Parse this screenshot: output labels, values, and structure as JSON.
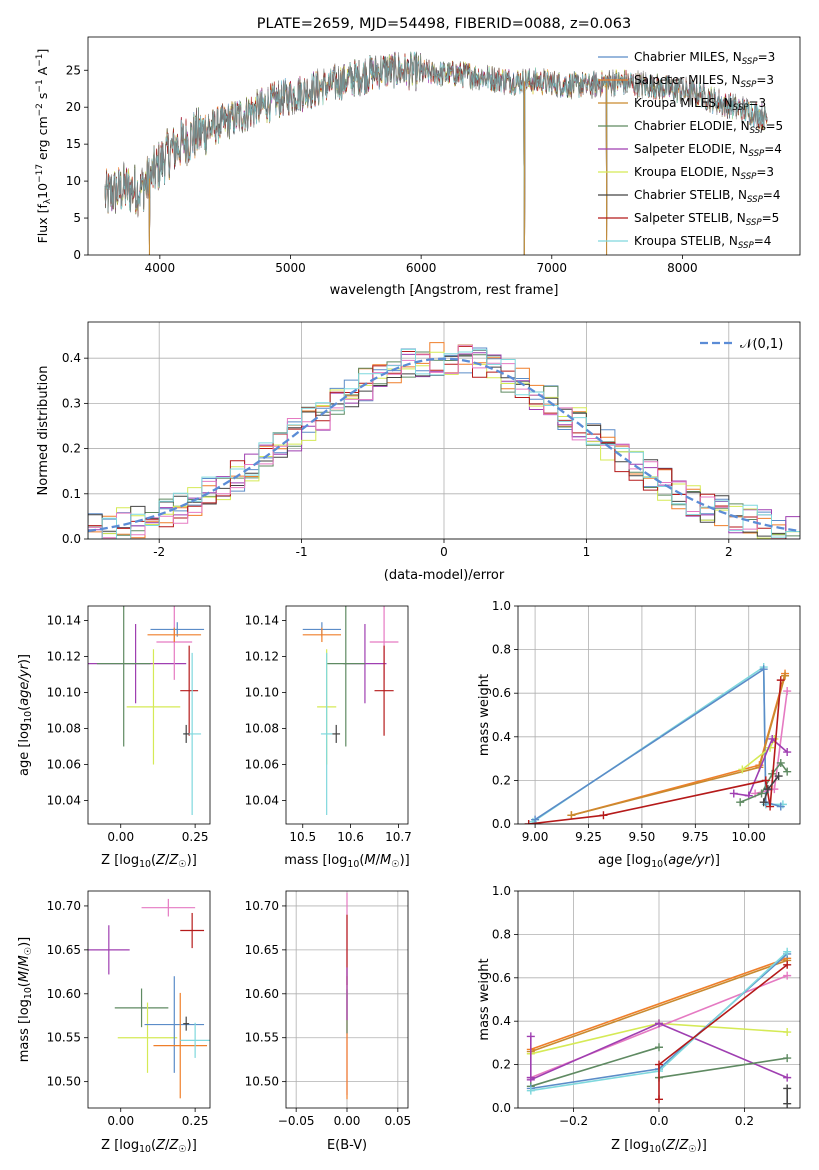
{
  "chart_data": [
    {
      "id": "spectrum",
      "type": "line",
      "title": "PLATE=2659, MJD=54498, FIBERID=0088, z=0.063",
      "xlabel": "wavelength [Angstrom, rest frame]",
      "ylabel": "Flux [f_λ 10^-17 erg cm^-2 s^-1 A^-1]",
      "xlim": [
        3450,
        8900
      ],
      "ylim": [
        0,
        29.5
      ],
      "xticks": [
        4000,
        5000,
        6000,
        7000,
        8000
      ],
      "yticks": [
        0,
        5,
        10,
        15,
        20,
        25
      ],
      "grid": false,
      "legend_position": "upper-right",
      "continuum": {
        "x": [
          3580,
          3650,
          3750,
          3850,
          3950,
          4050,
          4150,
          4300,
          4500,
          4700,
          4900,
          5100,
          5300,
          5500,
          5700,
          5900,
          6100,
          6300,
          6500,
          6700,
          6900,
          7100,
          7300,
          7500,
          7700,
          7900,
          8100,
          8300,
          8500,
          8650
        ],
        "y": [
          8.0,
          8.5,
          9.0,
          8.8,
          11.0,
          13.5,
          15.0,
          16.5,
          18.0,
          19.5,
          21.0,
          22.0,
          23.0,
          24.0,
          25.0,
          25.0,
          24.5,
          24.5,
          24.0,
          23.5,
          23.5,
          23.0,
          23.0,
          23.5,
          23.0,
          22.5,
          22.0,
          20.5,
          19.5,
          18.5
        ]
      },
      "dips": [
        {
          "x": 3920,
          "y": 0
        },
        {
          "x": 6790,
          "y": 0
        },
        {
          "x": 7420,
          "y": 0
        }
      ],
      "series": [
        {
          "name": "Chabrier MILES, N_SSP=3",
          "color": "#5b8cc8"
        },
        {
          "name": "Salpeter MILES, N_SSP=3",
          "color": "#ef7f2a"
        },
        {
          "name": "Kroupa MILES, N_SSP=3",
          "color": "#c98a2f"
        },
        {
          "name": "Chabrier ELODIE, N_SSP=5",
          "color": "#5f8a62"
        },
        {
          "name": "Salpeter ELODIE, N_SSP=4",
          "color": "#9f3fb1"
        },
        {
          "name": "Kroupa ELODIE, N_SSP=3",
          "color": "#d5ea56"
        },
        {
          "name": "Chabrier STELIB, N_SSP=4",
          "color": "#444444"
        },
        {
          "name": "Salpeter STELIB, N_SSP=5",
          "color": "#b51a1a"
        },
        {
          "name": "Kroupa STELIB, N_SSP=4",
          "color": "#7fd8dd"
        }
      ]
    },
    {
      "id": "residuals",
      "type": "step",
      "xlabel": "(data-model)/error",
      "ylabel": "Normed distribution",
      "xlim": [
        -2.5,
        2.5
      ],
      "ylim": [
        0,
        0.48
      ],
      "xticks": [
        -2,
        -1,
        0,
        1,
        2
      ],
      "yticks": [
        0.0,
        0.1,
        0.2,
        0.3,
        0.4
      ],
      "grid": true,
      "legend": "𝒩(0,1)",
      "legend_position": "upper-right",
      "reference_curve": "normal(0,1)",
      "bin_width": 0.1,
      "series_colors": [
        "#5b8cc8",
        "#ef7f2a",
        "#5f8a62",
        "#9f3fb1",
        "#d5ea56",
        "#444444",
        "#b51a1a",
        "#e57ac2",
        "#7fd8dd"
      ]
    },
    {
      "id": "age-vs-z",
      "type": "errorbar",
      "xlabel": "Z [log10(Z/Z☉)]",
      "ylabel": "age  [log10(age/yr)]",
      "xlim": [
        -0.11,
        0.3
      ],
      "ylim": [
        10.027,
        10.148
      ],
      "xticks": [
        0.0,
        0.25
      ],
      "xticklabels": [
        "0.00",
        "0.25"
      ],
      "yticks": [
        10.04,
        10.06,
        10.08,
        10.1,
        10.12,
        10.14
      ],
      "grid": false,
      "points": [
        {
          "x": 0.05,
          "y": 10.116,
          "xerr": 0.17,
          "yerr": 0.022,
          "color": "#9f3fb1"
        },
        {
          "x": 0.01,
          "y": 10.116,
          "xerr": 0.09,
          "yerr": 0.046,
          "color": "#5f8a62"
        },
        {
          "x": 0.11,
          "y": 10.092,
          "xerr": 0.09,
          "yerr": 0.032,
          "color": "#d5ea56"
        },
        {
          "x": 0.18,
          "y": 10.128,
          "xerr": 0.06,
          "yerr": 0.021,
          "color": "#e57ac2"
        },
        {
          "x": 0.19,
          "y": 10.135,
          "xerr": 0.09,
          "yerr": 0.004,
          "color": "#5b8cc8"
        },
        {
          "x": 0.18,
          "y": 10.132,
          "xerr": 0.09,
          "yerr": 0.004,
          "color": "#ef7f2a"
        },
        {
          "x": 0.23,
          "y": 10.101,
          "xerr": 0.03,
          "yerr": 0.025,
          "color": "#b51a1a"
        },
        {
          "x": 0.24,
          "y": 10.077,
          "xerr": 0.03,
          "yerr": 0.045,
          "color": "#7fd8dd"
        },
        {
          "x": 0.22,
          "y": 10.077,
          "xerr": 0.01,
          "yerr": 0.005,
          "color": "#444444"
        }
      ]
    },
    {
      "id": "age-vs-mass",
      "type": "errorbar",
      "xlabel": "mass [log10(M/M☉)]",
      "ylabel": "",
      "xlim": [
        10.465,
        10.72
      ],
      "ylim": [
        10.027,
        10.148
      ],
      "xticks": [
        10.5,
        10.6,
        10.7
      ],
      "yticks": [
        10.04,
        10.06,
        10.08,
        10.1,
        10.12,
        10.14
      ],
      "grid": false,
      "points": [
        {
          "x": 10.63,
          "y": 10.116,
          "xerr": 0.045,
          "yerr": 0.022,
          "color": "#9f3fb1"
        },
        {
          "x": 10.59,
          "y": 10.116,
          "xerr": 0.04,
          "yerr": 0.046,
          "color": "#5f8a62"
        },
        {
          "x": 10.55,
          "y": 10.092,
          "xerr": 0.02,
          "yerr": 0.032,
          "color": "#d5ea56"
        },
        {
          "x": 10.67,
          "y": 10.128,
          "xerr": 0.03,
          "yerr": 0.021,
          "color": "#e57ac2"
        },
        {
          "x": 10.54,
          "y": 10.135,
          "xerr": 0.04,
          "yerr": 0.004,
          "color": "#5b8cc8"
        },
        {
          "x": 10.54,
          "y": 10.132,
          "xerr": 0.04,
          "yerr": 0.004,
          "color": "#ef7f2a"
        },
        {
          "x": 10.67,
          "y": 10.101,
          "xerr": 0.02,
          "yerr": 0.025,
          "color": "#b51a1a"
        },
        {
          "x": 10.55,
          "y": 10.077,
          "xerr": 0.012,
          "yerr": 0.045,
          "color": "#7fd8dd"
        },
        {
          "x": 10.57,
          "y": 10.077,
          "xerr": 0.008,
          "yerr": 0.005,
          "color": "#444444"
        }
      ]
    },
    {
      "id": "massweight-vs-age",
      "type": "line",
      "xlabel": "age  [log10(age/yr)]",
      "ylabel": "mass weight",
      "xlim": [
        8.92,
        10.24
      ],
      "ylim": [
        0.0,
        1.0
      ],
      "xticks": [
        9.0,
        9.25,
        9.5,
        9.75,
        10.0
      ],
      "xticklabels": [
        "9.00",
        "9.25",
        "9.50",
        "9.75",
        "10.00"
      ],
      "yticks": [
        0.0,
        0.2,
        0.4,
        0.6,
        0.8,
        1.0
      ],
      "grid": true,
      "series": [
        {
          "color": "#7fd8dd",
          "x": [
            8.99,
            10.07,
            10.08,
            10.16
          ],
          "y": [
            0.01,
            0.72,
            0.09,
            0.09
          ]
        },
        {
          "color": "#5b8cc8",
          "x": [
            9.0,
            10.07,
            10.08,
            10.15
          ],
          "y": [
            0.02,
            0.71,
            0.1,
            0.08
          ]
        },
        {
          "color": "#ef7f2a",
          "x": [
            9.17,
            10.05,
            10.17
          ],
          "y": [
            0.04,
            0.27,
            0.69
          ]
        },
        {
          "color": "#c98a2f",
          "x": [
            9.17,
            10.05,
            10.17
          ],
          "y": [
            0.04,
            0.26,
            0.68
          ]
        },
        {
          "color": "#d5ea56",
          "x": [
            9.97,
            10.1,
            10.12
          ],
          "y": [
            0.25,
            0.35,
            0.39
          ]
        },
        {
          "color": "#e57ac2",
          "x": [
            10.03,
            10.12,
            10.18
          ],
          "y": [
            0.14,
            0.16,
            0.61
          ]
        },
        {
          "color": "#9f3fb1",
          "x": [
            9.93,
            10.0,
            10.11,
            10.18
          ],
          "y": [
            0.14,
            0.13,
            0.39,
            0.33
          ]
        },
        {
          "color": "#5f8a62",
          "x": [
            9.96,
            10.06,
            10.11,
            10.15,
            10.18
          ],
          "y": [
            0.1,
            0.14,
            0.23,
            0.28,
            0.24
          ]
        },
        {
          "color": "#b51a1a",
          "x": [
            8.97,
            9.32,
            10.08,
            10.1,
            10.15
          ],
          "y": [
            0.0,
            0.04,
            0.2,
            0.08,
            0.66
          ]
        },
        {
          "color": "#444444",
          "x": [
            10.07,
            10.09,
            10.14
          ],
          "y": [
            0.1,
            0.16,
            0.22
          ]
        }
      ]
    },
    {
      "id": "mass-vs-z",
      "type": "errorbar",
      "xlabel": "Z [log10(Z/Z☉)]",
      "ylabel": "mass [log10(M/M☉)]",
      "xlim": [
        -0.11,
        0.3
      ],
      "ylim": [
        10.47,
        10.717
      ],
      "xticks": [
        0.0,
        0.25
      ],
      "xticklabels": [
        "0.00",
        "0.25"
      ],
      "yticks": [
        10.5,
        10.55,
        10.6,
        10.65,
        10.7
      ],
      "grid": false,
      "points": [
        {
          "x": -0.04,
          "y": 10.65,
          "xerr": 0.07,
          "yerr": 0.028,
          "color": "#9f3fb1"
        },
        {
          "x": 0.07,
          "y": 10.584,
          "xerr": 0.09,
          "yerr": 0.022,
          "color": "#5f8a62"
        },
        {
          "x": 0.09,
          "y": 10.55,
          "xerr": 0.1,
          "yerr": 0.04,
          "color": "#d5ea56"
        },
        {
          "x": 0.16,
          "y": 10.698,
          "xerr": 0.09,
          "yerr": 0.01,
          "color": "#e57ac2"
        },
        {
          "x": 0.18,
          "y": 10.565,
          "xerr": 0.1,
          "yerr": 0.055,
          "color": "#5b8cc8"
        },
        {
          "x": 0.2,
          "y": 10.541,
          "xerr": 0.09,
          "yerr": 0.06,
          "color": "#ef7f2a"
        },
        {
          "x": 0.24,
          "y": 10.672,
          "xerr": 0.04,
          "yerr": 0.02,
          "color": "#b51a1a"
        },
        {
          "x": 0.25,
          "y": 10.547,
          "xerr": 0.05,
          "yerr": 0.02,
          "color": "#7fd8dd"
        },
        {
          "x": 0.22,
          "y": 10.566,
          "xerr": 0.01,
          "yerr": 0.008,
          "color": "#444444"
        }
      ]
    },
    {
      "id": "mass-vs-ebv",
      "type": "errorbar",
      "xlabel": "E(B-V)",
      "ylabel": "",
      "xlim": [
        -0.06,
        0.06
      ],
      "ylim": [
        10.47,
        10.717
      ],
      "xticks": [
        -0.05,
        0.0,
        0.05
      ],
      "xticklabels": [
        "−0.05",
        "0.00",
        "0.05"
      ],
      "yticks": [
        10.5,
        10.55,
        10.6,
        10.65,
        10.7
      ],
      "grid": true,
      "points": [
        {
          "x": 0.0,
          "y": 10.6,
          "xerr": 0.0,
          "yerr": 0.115,
          "color": "#e57ac2"
        },
        {
          "x": 0.0,
          "y": 10.55,
          "xerr": 0.0,
          "yerr": 0.07,
          "color": "#ef7f2a"
        },
        {
          "x": 0.0,
          "y": 10.65,
          "xerr": 0.0,
          "yerr": 0.04,
          "color": "#b51a1a"
        },
        {
          "x": 0.0,
          "y": 10.58,
          "xerr": 0.0,
          "yerr": 0.025,
          "color": "#5f8a62"
        },
        {
          "x": 0.0,
          "y": 10.6,
          "xerr": 0.0,
          "yerr": 0.03,
          "color": "#9f3fb1"
        }
      ]
    },
    {
      "id": "massweight-vs-z",
      "type": "line",
      "xlabel": "Z [log10(Z/Z☉)]",
      "ylabel": "mass weight",
      "xlim": [
        -0.33,
        0.33
      ],
      "ylim": [
        0.0,
        1.0
      ],
      "xticks": [
        -0.2,
        0.0,
        0.2
      ],
      "xticklabels": [
        "−0.2",
        "0.0",
        "0.2"
      ],
      "yticks": [
        0.0,
        0.2,
        0.4,
        0.6,
        0.8,
        1.0
      ],
      "grid": true,
      "series": [
        {
          "color": "#ef7f2a",
          "x": [
            -0.3,
            0.3
          ],
          "y": [
            0.27,
            0.69
          ]
        },
        {
          "color": "#c98a2f",
          "x": [
            -0.3,
            0.3
          ],
          "y": [
            0.26,
            0.68
          ]
        },
        {
          "color": "#d5ea56",
          "x": [
            -0.3,
            0.0,
            0.3
          ],
          "y": [
            0.25,
            0.39,
            0.35
          ]
        },
        {
          "color": "#e57ac2",
          "x": [
            -0.3,
            0.3
          ],
          "y": [
            0.14,
            0.61
          ]
        },
        {
          "color": "#9f3fb1",
          "x": [
            -0.3,
            0.0,
            0.3
          ],
          "y": [
            0.13,
            0.39,
            0.14
          ]
        },
        {
          "color": "#9f3fb1",
          "x": [
            -0.3,
            -0.3
          ],
          "y": [
            0.33,
            0.14
          ]
        },
        {
          "color": "#5f8a62",
          "x": [
            -0.3,
            0.0
          ],
          "y": [
            0.1,
            0.28
          ]
        },
        {
          "color": "#5f8a62",
          "x": [
            0.0,
            0.3
          ],
          "y": [
            0.14,
            0.23
          ]
        },
        {
          "color": "#5b8cc8",
          "x": [
            -0.3,
            0.0,
            0.3
          ],
          "y": [
            0.09,
            0.18,
            0.71
          ]
        },
        {
          "color": "#7fd8dd",
          "x": [
            -0.3,
            0.0,
            0.3
          ],
          "y": [
            0.08,
            0.17,
            0.72
          ]
        },
        {
          "color": "#b51a1a",
          "x": [
            0.0,
            0.0,
            0.3
          ],
          "y": [
            0.04,
            0.2,
            0.66
          ]
        },
        {
          "color": "#444444",
          "x": [
            0.3,
            0.3
          ],
          "y": [
            0.02,
            0.09
          ]
        }
      ]
    }
  ]
}
